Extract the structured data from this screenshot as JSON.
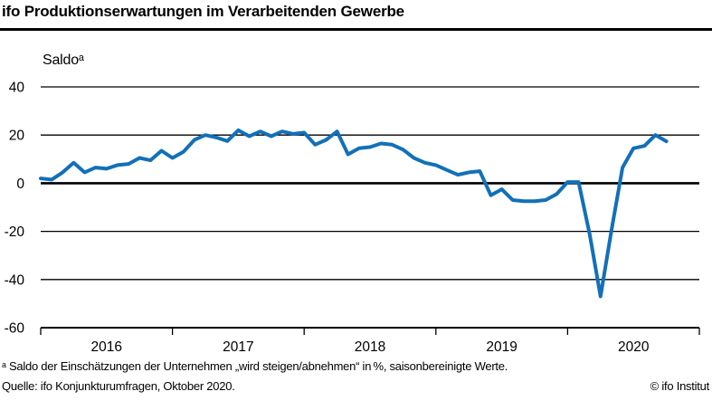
{
  "title": "ifo Produktionserwartungen im Verarbeitenden Gewerbe",
  "footnotes": {
    "definition": "ᵃ Saldo der Einschätzungen der Unternehmen „wird steigen/abnehmen“ in %, saisonbereinigte Werte.",
    "source": "Quelle: ifo Konjunkturumfragen, Oktober 2020.",
    "copyright": "© ifo Institut"
  },
  "chart_data": {
    "type": "line",
    "title": "ifo Produktionserwartungen im Verarbeitenden Gewerbe",
    "unit_label": "Saldoᵃ",
    "frequency": "monthly",
    "x_start": "2016-01",
    "x_end": "2020-10",
    "x_tick_labels": [
      "2016",
      "2017",
      "2018",
      "2019",
      "2020"
    ],
    "x_total_months": 60,
    "ylim": [
      -60,
      40
    ],
    "yticks": [
      40,
      20,
      0,
      -20,
      -40,
      -60
    ],
    "grid": true,
    "legend": "none",
    "line_color": "#1270b8",
    "values": [
      2.0,
      1.5,
      4.5,
      8.5,
      4.5,
      6.5,
      6.0,
      7.5,
      8.0,
      10.5,
      9.5,
      13.5,
      10.5,
      13.0,
      18.0,
      20.0,
      19.0,
      17.5,
      22.0,
      19.5,
      21.5,
      19.5,
      21.5,
      20.5,
      21.0,
      16.0,
      18.0,
      21.5,
      12.0,
      14.5,
      15.0,
      16.5,
      16.0,
      14.0,
      10.5,
      8.5,
      7.5,
      5.5,
      3.5,
      4.5,
      5.0,
      -5.0,
      -2.5,
      -7.0,
      -7.5,
      -7.5,
      -7.0,
      -4.5,
      0.5,
      0.5,
      -21.0,
      -47.0,
      -19.5,
      6.5,
      14.5,
      15.5,
      20.0,
      17.4
    ]
  }
}
